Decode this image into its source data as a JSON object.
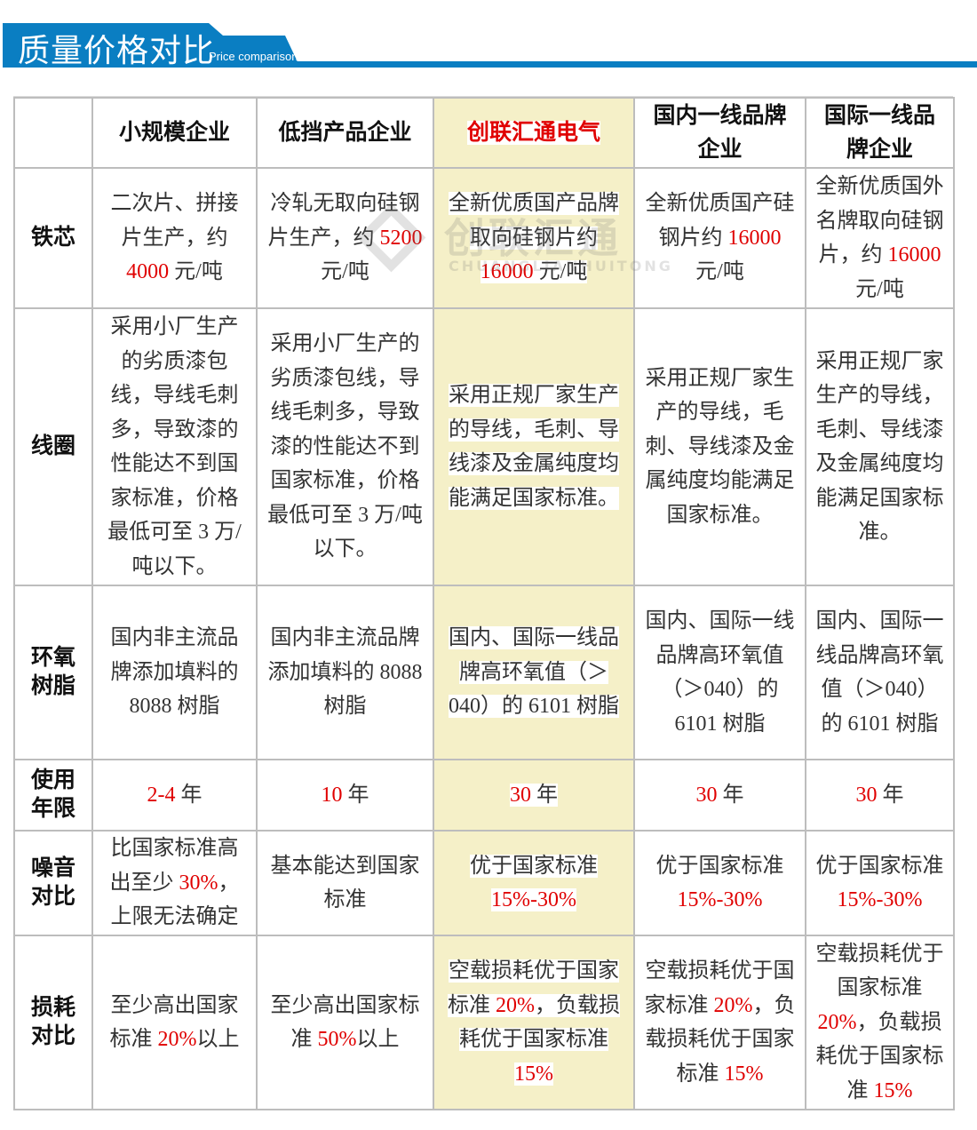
{
  "banner": {
    "title": "质量价格对比",
    "subtitle": "Price comparison",
    "color": "#0a7ec2"
  },
  "watermark": {
    "text": "创联汇通",
    "en": "CHUANGLIANHUITONG"
  },
  "colors": {
    "highlight": "#f5f0c8",
    "accent_red": "#e00000"
  },
  "table": {
    "columns": [
      "",
      "小规模企业",
      "低挡产品企业",
      "创联汇通电气",
      "国内一线品牌企业",
      "国际一线品牌企业"
    ],
    "highlight_column": 3,
    "rows": [
      {
        "label": "铁芯",
        "cells": [
          [
            {
              "t": "二次片、拼接片生产，约 "
            },
            {
              "t": "4000",
              "red": true
            },
            {
              "t": " 元/吨"
            }
          ],
          [
            {
              "t": "冷轧无取向硅钢片生产，约 "
            },
            {
              "t": "5200",
              "red": true
            },
            {
              "t": " 元/吨"
            }
          ],
          [
            {
              "t": "全新优质国产品牌取向硅钢片约 "
            },
            {
              "t": "16000",
              "red": true
            },
            {
              "t": " 元/吨"
            }
          ],
          [
            {
              "t": "全新优质国产硅钢片约 "
            },
            {
              "t": "16000",
              "red": true
            },
            {
              "t": " 元/吨"
            }
          ],
          [
            {
              "t": "全新优质国外名牌取向硅钢片，约 "
            },
            {
              "t": "16000",
              "red": true
            },
            {
              "t": " 元/吨"
            }
          ]
        ]
      },
      {
        "label": "线圈",
        "cells": [
          [
            {
              "t": "采用小厂生产的劣质漆包线，导线毛刺多，导致漆的性能达不到国家标准，价格最低可至 3 万/吨以下。"
            }
          ],
          [
            {
              "t": "采用小厂生产的劣质漆包线，导线毛刺多，导致漆的性能达不到国家标准，价格最低可至 3 万/吨以下。"
            }
          ],
          [
            {
              "t": "采用正规厂家生产的导线，毛刺、导线漆及金属纯度均能满足国家标准。"
            }
          ],
          [
            {
              "t": "采用正规厂家生产的导线，毛刺、导线漆及金属纯度均能满足国家标准。"
            }
          ],
          [
            {
              "t": "采用正规厂家生产的导线，毛刺、导线漆及金属纯度均能满足国家标准。"
            }
          ]
        ]
      },
      {
        "label": "环氧树脂",
        "cells": [
          [
            {
              "t": "国内非主流品牌添加填料的 8088 树脂"
            }
          ],
          [
            {
              "t": "国内非主流品牌添加填料的 8088 树脂"
            }
          ],
          [
            {
              "t": "国内、国际一线品牌高环氧值（＞040）的 6101 树脂"
            }
          ],
          [
            {
              "t": "国内、国际一线品牌高环氧值（＞040）的 6101 树脂"
            }
          ],
          [
            {
              "t": "国内、国际一线品牌高环氧值（＞040）的 6101 树脂"
            }
          ]
        ]
      },
      {
        "label": "使用年限",
        "cells": [
          [
            {
              "t": "2-4",
              "red": true
            },
            {
              "t": " 年"
            }
          ],
          [
            {
              "t": "10",
              "red": true
            },
            {
              "t": " 年"
            }
          ],
          [
            {
              "t": "30",
              "red": true
            },
            {
              "t": " 年"
            }
          ],
          [
            {
              "t": "30",
              "red": true
            },
            {
              "t": " 年"
            }
          ],
          [
            {
              "t": "30",
              "red": true
            },
            {
              "t": " 年"
            }
          ]
        ]
      },
      {
        "label": "噪音对比",
        "cells": [
          [
            {
              "t": "比国家标准高出至少 "
            },
            {
              "t": "30%",
              "red": true
            },
            {
              "t": "，上限无法确定"
            }
          ],
          [
            {
              "t": "基本能达到国家标准"
            }
          ],
          [
            {
              "t": "优于国家标准 "
            },
            {
              "t": "15%-30%",
              "red": true
            }
          ],
          [
            {
              "t": "优于国家标准 "
            },
            {
              "t": "15%-30%",
              "red": true
            }
          ],
          [
            {
              "t": "优于国家标准 "
            },
            {
              "t": "15%-30%",
              "red": true
            }
          ]
        ]
      },
      {
        "label": "损耗对比",
        "cells": [
          [
            {
              "t": "至少高出国家标准 "
            },
            {
              "t": "20%",
              "red": true
            },
            {
              "t": "以上"
            }
          ],
          [
            {
              "t": "至少高出国家标准 "
            },
            {
              "t": "50%",
              "red": true
            },
            {
              "t": "以上"
            }
          ],
          [
            {
              "t": "空载损耗优于国家标准 "
            },
            {
              "t": "20%",
              "red": true
            },
            {
              "t": "，负载损耗优于国家标准 "
            },
            {
              "t": "15%",
              "red": true
            }
          ],
          [
            {
              "t": "空载损耗优于国家标准 "
            },
            {
              "t": "20%",
              "red": true
            },
            {
              "t": "，负载损耗优于国家标准 "
            },
            {
              "t": "15%",
              "red": true
            }
          ],
          [
            {
              "t": "空载损耗优于国家标准 "
            },
            {
              "t": "20%",
              "red": true
            },
            {
              "t": "，负载损耗优于国家标准 "
            },
            {
              "t": "15%",
              "red": true
            }
          ]
        ]
      }
    ]
  }
}
